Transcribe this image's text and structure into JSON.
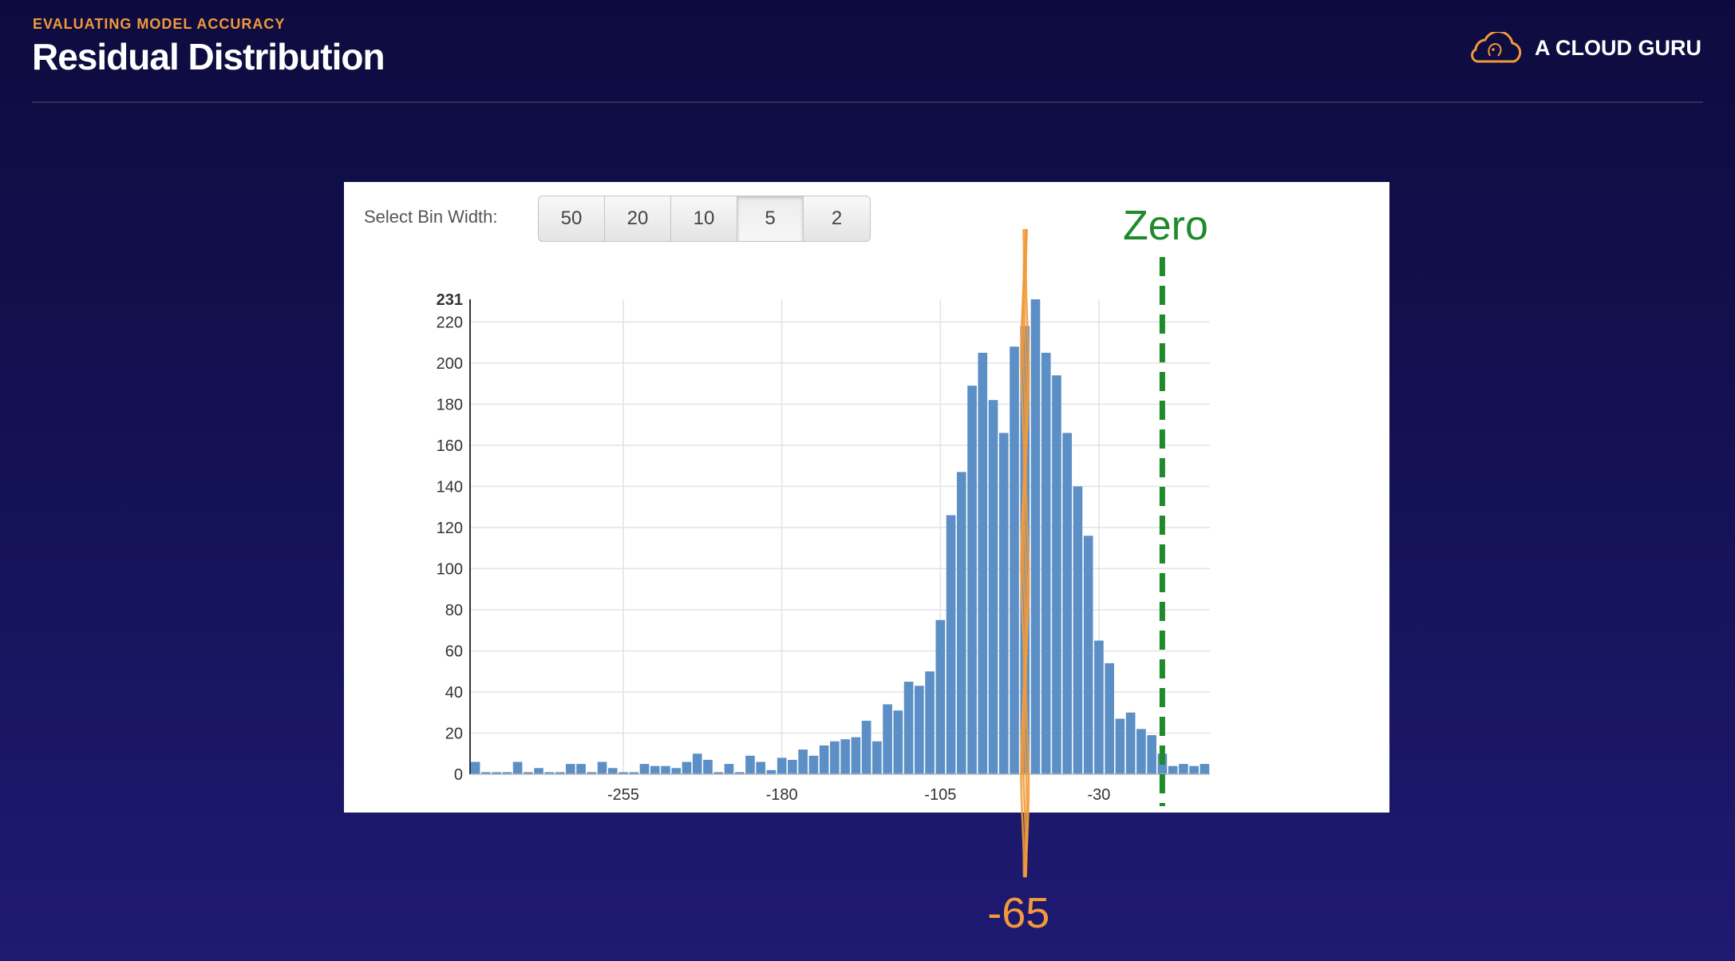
{
  "header": {
    "eyebrow": "EVALUATING MODEL ACCURACY",
    "title": "Residual Distribution",
    "brand": "A CLOUD GURU",
    "logo_icon": "cloud-guru-logo-icon"
  },
  "colors": {
    "accent_orange": "#f29a3a",
    "bar_blue": "#5b8fc5",
    "zero_line_green": "#1e8a2a",
    "background": "#141255"
  },
  "controls": {
    "bin_width_label": "Select Bin Width:",
    "bin_widths": [
      "50",
      "20",
      "10",
      "5",
      "2"
    ],
    "selected_bin_width": "5"
  },
  "chart_data": {
    "type": "bar",
    "subtype": "histogram",
    "title": "",
    "xlabel": "",
    "ylabel": "",
    "bin_width": 5,
    "x_start": -327.5,
    "values": [
      6,
      1,
      1,
      1,
      6,
      1,
      3,
      1,
      1,
      5,
      5,
      1,
      6,
      3,
      1,
      1,
      5,
      4,
      4,
      3,
      6,
      10,
      7,
      1,
      5,
      1,
      9,
      6,
      2,
      8,
      7,
      12,
      9,
      14,
      16,
      17,
      18,
      26,
      16,
      34,
      31,
      45,
      43,
      50,
      75,
      126,
      147,
      189,
      205,
      182,
      166,
      208,
      218,
      231,
      205,
      194,
      166,
      140,
      116,
      65,
      54,
      27,
      30,
      22,
      19,
      10,
      4,
      5,
      4,
      5
    ],
    "ylim": [
      0,
      231
    ],
    "yticks": [
      0,
      20,
      40,
      60,
      80,
      100,
      120,
      140,
      160,
      180,
      200,
      220
    ],
    "ymax_label": "231",
    "xlim": [
      -327.5,
      22.5
    ],
    "xticks": [
      -255,
      -180,
      -105,
      -30
    ],
    "grid": true,
    "annotations": [
      {
        "label": "Zero",
        "x": 0,
        "style": "dashed",
        "color": "#1e8a2a"
      },
      {
        "label": "-65",
        "x": -65,
        "style": "hand-drawn",
        "color": "#f29a3a"
      }
    ]
  }
}
